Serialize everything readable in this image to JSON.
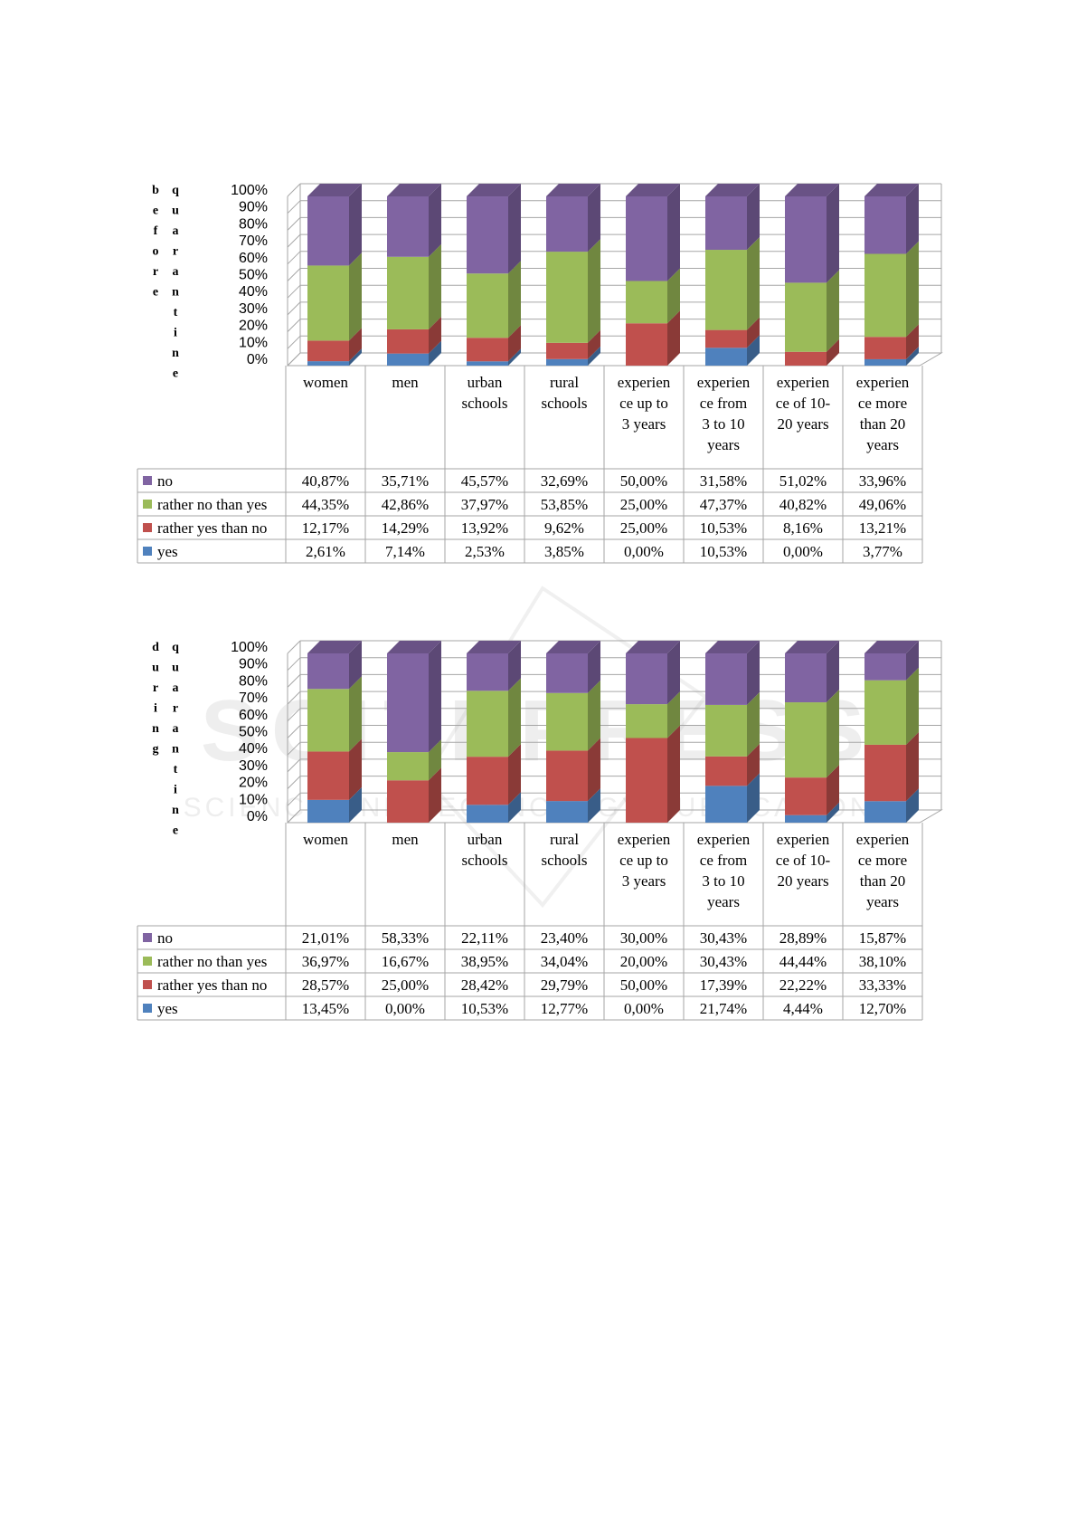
{
  "colors": {
    "yes": "#4F81BD",
    "rather_yes_than_no": "#C0504D",
    "rather_no_than_yes": "#9BBB59",
    "no": "#8064A2",
    "grid": "#a6a6a6",
    "table_border": "#a6a6a6"
  },
  "watermark": {
    "main": "SCITEPRESS",
    "sub": "SCIENCE AND TECHNOLOGY PUBLICATIONS"
  },
  "chart_data": [
    {
      "type": "bar",
      "stacked": true,
      "three_d": true,
      "side_label": "before quarantine",
      "side_label_columns": [
        "before",
        "quarantine"
      ],
      "categories": [
        [
          "women"
        ],
        [
          "men"
        ],
        [
          "urban",
          "schools"
        ],
        [
          "rural",
          "schools"
        ],
        [
          "experien",
          "ce up to",
          "3 years"
        ],
        [
          "experien",
          "ce from",
          "3 to 10",
          "years"
        ],
        [
          "experien",
          "ce of 10-",
          "20 years"
        ],
        [
          "experien",
          "ce more",
          "than 20",
          "years"
        ]
      ],
      "y_ticks": [
        "0%",
        "10%",
        "20%",
        "30%",
        "40%",
        "50%",
        "60%",
        "70%",
        "80%",
        "90%",
        "100%"
      ],
      "ylim": [
        0,
        100
      ],
      "grid": true,
      "legend": "table",
      "series": [
        {
          "name": "yes",
          "values": [
            2.61,
            7.14,
            2.53,
            3.85,
            0.0,
            10.53,
            0.0,
            3.77
          ],
          "labels": [
            "2,61%",
            "7,14%",
            "2,53%",
            "3,85%",
            "0,00%",
            "10,53%",
            "0,00%",
            "3,77%"
          ]
        },
        {
          "name": "rather yes than no",
          "values": [
            12.17,
            14.29,
            13.92,
            9.62,
            25.0,
            10.53,
            8.16,
            13.21
          ],
          "labels": [
            "12,17%",
            "14,29%",
            "13,92%",
            "9,62%",
            "25,00%",
            "10,53%",
            "8,16%",
            "13,21%"
          ]
        },
        {
          "name": "rather no than yes",
          "values": [
            44.35,
            42.86,
            37.97,
            53.85,
            25.0,
            47.37,
            40.82,
            49.06
          ],
          "labels": [
            "44,35%",
            "42,86%",
            "37,97%",
            "53,85%",
            "25,00%",
            "47,37%",
            "40,82%",
            "49,06%"
          ]
        },
        {
          "name": "no",
          "values": [
            40.87,
            35.71,
            45.57,
            32.69,
            50.0,
            31.58,
            51.02,
            33.96
          ],
          "labels": [
            "40,87%",
            "35,71%",
            "45,57%",
            "32,69%",
            "50,00%",
            "31,58%",
            "51,02%",
            "33,96%"
          ]
        }
      ]
    },
    {
      "type": "bar",
      "stacked": true,
      "three_d": true,
      "side_label": "during quarantine",
      "side_label_columns": [
        "during",
        "quarantine"
      ],
      "categories": [
        [
          "women"
        ],
        [
          "men"
        ],
        [
          "urban",
          "schools"
        ],
        [
          "rural",
          "schools"
        ],
        [
          "experien",
          "ce up to",
          "3 years"
        ],
        [
          "experien",
          "ce from",
          "3 to 10",
          "years"
        ],
        [
          "experien",
          "ce of 10-",
          "20 years"
        ],
        [
          "experien",
          "ce more",
          "than 20",
          "years"
        ]
      ],
      "y_ticks": [
        "0%",
        "10%",
        "20%",
        "30%",
        "40%",
        "50%",
        "60%",
        "70%",
        "80%",
        "90%",
        "100%"
      ],
      "ylim": [
        0,
        100
      ],
      "grid": true,
      "legend": "table",
      "series": [
        {
          "name": "yes",
          "values": [
            13.45,
            0.0,
            10.53,
            12.77,
            0.0,
            21.74,
            4.44,
            12.7
          ],
          "labels": [
            "13,45%",
            "0,00%",
            "10,53%",
            "12,77%",
            "0,00%",
            "21,74%",
            "4,44%",
            "12,70%"
          ]
        },
        {
          "name": "rather yes than no",
          "values": [
            28.57,
            25.0,
            28.42,
            29.79,
            50.0,
            17.39,
            22.22,
            33.33
          ],
          "labels": [
            "28,57%",
            "25,00%",
            "28,42%",
            "29,79%",
            "50,00%",
            "17,39%",
            "22,22%",
            "33,33%"
          ]
        },
        {
          "name": "rather no than yes",
          "values": [
            36.97,
            16.67,
            38.95,
            34.04,
            20.0,
            30.43,
            44.44,
            38.1
          ],
          "labels": [
            "36,97%",
            "16,67%",
            "38,95%",
            "34,04%",
            "20,00%",
            "30,43%",
            "44,44%",
            "38,10%"
          ]
        },
        {
          "name": "no",
          "values": [
            21.01,
            58.33,
            22.11,
            23.4,
            30.0,
            30.43,
            28.89,
            15.87
          ],
          "labels": [
            "21,01%",
            "58,33%",
            "22,11%",
            "23,40%",
            "30,00%",
            "30,43%",
            "28,89%",
            "15,87%"
          ]
        }
      ]
    }
  ]
}
